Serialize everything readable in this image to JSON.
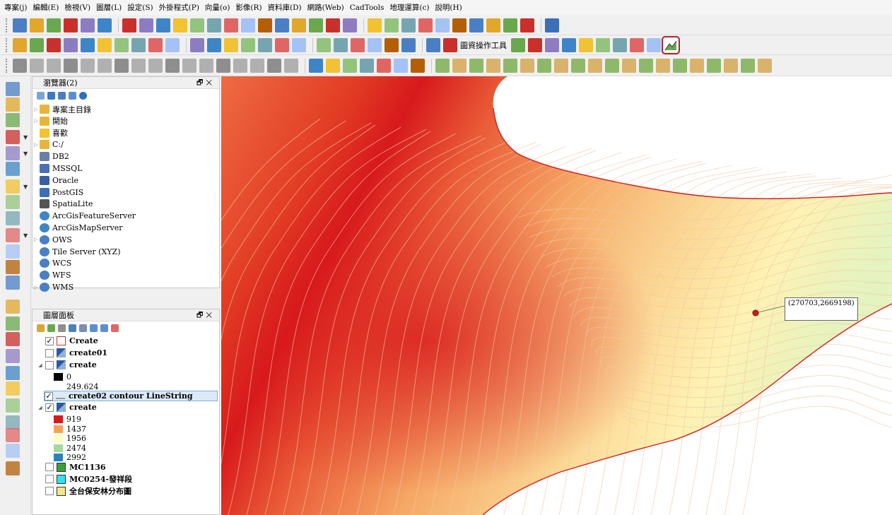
{
  "menu": [
    "專案(j)",
    "編輯(E)",
    "檢視(V)",
    "圖層(L)",
    "設定(S)",
    "外掛程式(P)",
    "向量(o)",
    "影像(R)",
    "資料庫(D)",
    "網路(Web)",
    "CadTools",
    "地理運算(c)",
    "說明(H)"
  ],
  "toolbar2": {
    "map_tools_label": "圖資操作工具"
  },
  "browser": {
    "title": "瀏覽器(2)",
    "items": [
      {
        "label": "專案主目錄",
        "icon": "folder-icon",
        "expand": true
      },
      {
        "label": "開始",
        "icon": "folder-icon",
        "expand": true
      },
      {
        "label": "喜歡",
        "icon": "star-icon",
        "expand": false
      },
      {
        "label": "C:/",
        "icon": "folder-icon",
        "expand": true
      },
      {
        "label": "DB2",
        "icon": "db2-icon",
        "expand": false
      },
      {
        "label": "MSSQL",
        "icon": "mssql-icon",
        "expand": false
      },
      {
        "label": "Oracle",
        "icon": "oracle-icon",
        "expand": false
      },
      {
        "label": "PostGIS",
        "icon": "postgis-icon",
        "expand": false
      },
      {
        "label": "SpatiaLite",
        "icon": "spatialite-icon",
        "expand": false
      },
      {
        "label": "ArcGisFeatureServer",
        "icon": "arcgis-icon",
        "expand": false
      },
      {
        "label": "ArcGisMapServer",
        "icon": "arcgis-icon",
        "expand": false
      },
      {
        "label": "OWS",
        "icon": "globe-icon",
        "expand": true
      },
      {
        "label": "Tile Server (XYZ)",
        "icon": "globe-icon",
        "expand": false
      },
      {
        "label": "WCS",
        "icon": "globe-icon",
        "expand": false
      },
      {
        "label": "WFS",
        "icon": "globe-icon",
        "expand": false
      },
      {
        "label": "WMS",
        "icon": "globe-icon",
        "expand": true
      }
    ]
  },
  "layers": {
    "title": "圖層面板",
    "rows": [
      {
        "type": "layer",
        "label": "Create",
        "checked": true,
        "icon": "polygon-icon",
        "expand": false,
        "bold": true
      },
      {
        "type": "layer",
        "label": "create01",
        "checked": false,
        "icon": "raster-icon",
        "expand": false,
        "bold": true
      },
      {
        "type": "layer",
        "label": "create",
        "checked": false,
        "icon": "raster-icon",
        "expand": true,
        "bold": true
      },
      {
        "type": "legend",
        "label": "0",
        "color": "#000000"
      },
      {
        "type": "legend",
        "label": "249.624",
        "color": "#ffffff"
      },
      {
        "type": "layer",
        "label": "create02 contour LineString",
        "checked": true,
        "icon": "line-icon",
        "expand": false,
        "bold": true,
        "selected": true
      },
      {
        "type": "layer",
        "label": "create",
        "checked": true,
        "icon": "raster-icon",
        "expand": true,
        "bold": true
      },
      {
        "type": "legend",
        "label": "919",
        "color": "#d7191c"
      },
      {
        "type": "legend",
        "label": "1437",
        "color": "#f4a25a"
      },
      {
        "type": "legend",
        "label": "1956",
        "color": "#ffffbf"
      },
      {
        "type": "legend",
        "label": "2474",
        "color": "#a6d9a0"
      },
      {
        "type": "legend",
        "label": "2992",
        "color": "#2b83ba"
      },
      {
        "type": "layer",
        "label": "MC1136",
        "checked": false,
        "icon": "green-square",
        "expand": false,
        "bold": true
      },
      {
        "type": "layer",
        "label": "MC0254-發祥段",
        "checked": false,
        "icon": "cyan-square",
        "expand": false,
        "bold": true
      },
      {
        "type": "layer",
        "label": "全台保安林分布圖",
        "checked": false,
        "icon": "yellow-square",
        "expand": false,
        "bold": true
      }
    ]
  },
  "map": {
    "coordinate_label": "(270703,2669198)"
  },
  "colors": {
    "accent_highlight": "#b3262d",
    "selection": "#dbeaf8"
  }
}
